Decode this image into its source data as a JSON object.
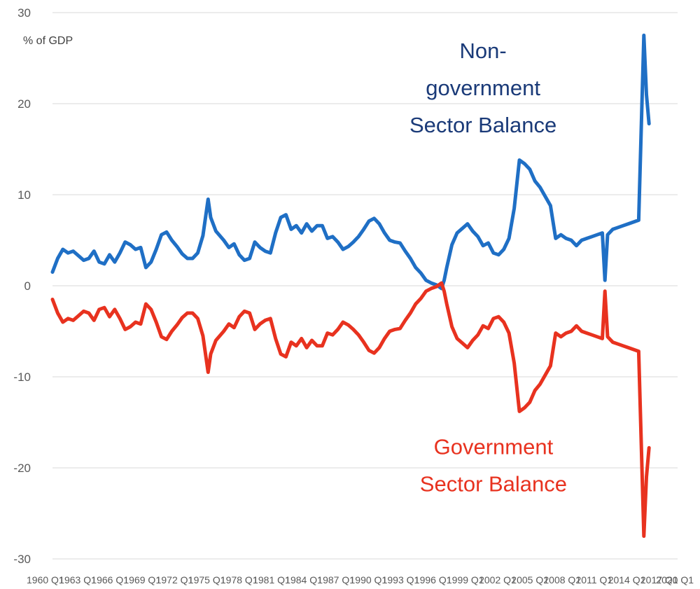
{
  "chart_data": {
    "type": "line",
    "ylabel": "% of GDP",
    "ylim": [
      -30,
      30
    ],
    "yticks": [
      30,
      20,
      10,
      0,
      -10,
      -20,
      -30
    ],
    "xlim": [
      1960.0,
      2020.25
    ],
    "x_tick_labels": [
      "1960 Q1",
      "1963 Q1",
      "1966 Q1",
      "1969 Q1",
      "1972 Q1",
      "1975 Q1",
      "1978 Q1",
      "1981 Q1",
      "1984 Q1",
      "1987 Q1",
      "1990 Q1",
      "1993 Q1",
      "1996 Q1",
      "1999 Q1",
      "2002 Q1",
      "2005 Q1",
      "2008 Q1",
      "2011 Q1",
      "2014 Q1",
      "2017 Q1",
      "2020 Q1"
    ],
    "grid": "horizontal",
    "series": [
      {
        "name": "Non-government Sector Balance",
        "color": "#1f6fc5",
        "points": [
          [
            1960.0,
            1.5
          ],
          [
            1960.5,
            3.0
          ],
          [
            1961.0,
            4.0
          ],
          [
            1961.5,
            3.6
          ],
          [
            1962.0,
            3.8
          ],
          [
            1962.5,
            3.3
          ],
          [
            1963.0,
            2.8
          ],
          [
            1963.5,
            3.0
          ],
          [
            1964.0,
            3.8
          ],
          [
            1964.5,
            2.6
          ],
          [
            1965.0,
            2.4
          ],
          [
            1965.5,
            3.4
          ],
          [
            1966.0,
            2.6
          ],
          [
            1966.5,
            3.6
          ],
          [
            1967.0,
            4.8
          ],
          [
            1967.5,
            4.5
          ],
          [
            1968.0,
            4.0
          ],
          [
            1968.5,
            4.2
          ],
          [
            1969.0,
            2.0
          ],
          [
            1969.5,
            2.6
          ],
          [
            1970.0,
            4.0
          ],
          [
            1970.5,
            5.6
          ],
          [
            1971.0,
            5.9
          ],
          [
            1971.5,
            5.0
          ],
          [
            1972.0,
            4.3
          ],
          [
            1972.5,
            3.5
          ],
          [
            1973.0,
            3.0
          ],
          [
            1973.5,
            3.0
          ],
          [
            1974.0,
            3.6
          ],
          [
            1974.5,
            5.5
          ],
          [
            1975.0,
            9.5
          ],
          [
            1975.25,
            7.5
          ],
          [
            1975.75,
            6.0
          ],
          [
            1976.5,
            5.0
          ],
          [
            1977.0,
            4.2
          ],
          [
            1977.5,
            4.6
          ],
          [
            1978.0,
            3.4
          ],
          [
            1978.5,
            2.8
          ],
          [
            1979.0,
            3.0
          ],
          [
            1979.5,
            4.8
          ],
          [
            1980.0,
            4.2
          ],
          [
            1980.5,
            3.8
          ],
          [
            1981.0,
            3.6
          ],
          [
            1981.5,
            5.8
          ],
          [
            1982.0,
            7.5
          ],
          [
            1982.5,
            7.8
          ],
          [
            1983.0,
            6.2
          ],
          [
            1983.5,
            6.6
          ],
          [
            1984.0,
            5.8
          ],
          [
            1984.5,
            6.8
          ],
          [
            1985.0,
            6.0
          ],
          [
            1985.5,
            6.6
          ],
          [
            1986.0,
            6.6
          ],
          [
            1986.5,
            5.2
          ],
          [
            1987.0,
            5.4
          ],
          [
            1987.5,
            4.8
          ],
          [
            1988.0,
            4.0
          ],
          [
            1988.5,
            4.3
          ],
          [
            1989.0,
            4.8
          ],
          [
            1989.5,
            5.4
          ],
          [
            1990.0,
            6.2
          ],
          [
            1990.5,
            7.1
          ],
          [
            1991.0,
            7.4
          ],
          [
            1991.5,
            6.8
          ],
          [
            1992.0,
            5.8
          ],
          [
            1992.5,
            5.0
          ],
          [
            1993.0,
            4.8
          ],
          [
            1993.5,
            4.7
          ],
          [
            1994.0,
            3.8
          ],
          [
            1994.5,
            3.0
          ],
          [
            1995.0,
            2.0
          ],
          [
            1995.5,
            1.4
          ],
          [
            1996.0,
            0.6
          ],
          [
            1996.5,
            0.3
          ],
          [
            1997.0,
            0.1
          ],
          [
            1997.5,
            -0.3
          ],
          [
            1997.75,
            0.6
          ],
          [
            1998.0,
            2.0
          ],
          [
            1998.5,
            4.5
          ],
          [
            1999.0,
            5.8
          ],
          [
            1999.5,
            6.3
          ],
          [
            2000.0,
            6.8
          ],
          [
            2000.5,
            6.0
          ],
          [
            2001.0,
            5.4
          ],
          [
            2001.5,
            4.4
          ],
          [
            2002.0,
            4.7
          ],
          [
            2002.5,
            3.6
          ],
          [
            2003.0,
            3.4
          ],
          [
            2003.5,
            4.0
          ],
          [
            2004.0,
            5.2
          ],
          [
            2004.5,
            8.5
          ],
          [
            2005.0,
            13.8
          ],
          [
            2005.5,
            13.4
          ],
          [
            2006.0,
            12.8
          ],
          [
            2006.5,
            11.5
          ],
          [
            2007.0,
            10.8
          ],
          [
            2007.5,
            9.8
          ],
          [
            2008.0,
            8.8
          ],
          [
            2008.5,
            5.2
          ],
          [
            2009.0,
            5.6
          ],
          [
            2009.5,
            5.2
          ],
          [
            2010.0,
            5.0
          ],
          [
            2010.5,
            4.4
          ],
          [
            2011.0,
            5.0
          ],
          [
            2011.5,
            5.2
          ],
          [
            2012.0,
            5.4
          ],
          [
            2012.5,
            5.6
          ],
          [
            2013.0,
            5.8
          ],
          [
            2013.25,
            0.6
          ],
          [
            2013.5,
            5.6
          ],
          [
            2014.0,
            6.2
          ],
          [
            2014.5,
            6.4
          ],
          [
            2015.0,
            6.6
          ],
          [
            2015.5,
            6.8
          ],
          [
            2016.0,
            7.0
          ],
          [
            2016.5,
            7.2
          ],
          [
            2017.0,
            27.5
          ],
          [
            2017.25,
            21.0
          ],
          [
            2017.5,
            17.8
          ]
        ]
      },
      {
        "name": "Government Sector Balance",
        "color": "#e8321f",
        "points": [
          [
            1960.0,
            -1.5
          ],
          [
            1960.5,
            -3.0
          ],
          [
            1961.0,
            -4.0
          ],
          [
            1961.5,
            -3.6
          ],
          [
            1962.0,
            -3.8
          ],
          [
            1962.5,
            -3.3
          ],
          [
            1963.0,
            -2.8
          ],
          [
            1963.5,
            -3.0
          ],
          [
            1964.0,
            -3.8
          ],
          [
            1964.5,
            -2.6
          ],
          [
            1965.0,
            -2.4
          ],
          [
            1965.5,
            -3.4
          ],
          [
            1966.0,
            -2.6
          ],
          [
            1966.5,
            -3.6
          ],
          [
            1967.0,
            -4.8
          ],
          [
            1967.5,
            -4.5
          ],
          [
            1968.0,
            -4.0
          ],
          [
            1968.5,
            -4.2
          ],
          [
            1969.0,
            -2.0
          ],
          [
            1969.5,
            -2.6
          ],
          [
            1970.0,
            -4.0
          ],
          [
            1970.5,
            -5.6
          ],
          [
            1971.0,
            -5.9
          ],
          [
            1971.5,
            -5.0
          ],
          [
            1972.0,
            -4.3
          ],
          [
            1972.5,
            -3.5
          ],
          [
            1973.0,
            -3.0
          ],
          [
            1973.5,
            -3.0
          ],
          [
            1974.0,
            -3.6
          ],
          [
            1974.5,
            -5.5
          ],
          [
            1975.0,
            -9.5
          ],
          [
            1975.25,
            -7.5
          ],
          [
            1975.75,
            -6.0
          ],
          [
            1976.5,
            -5.0
          ],
          [
            1977.0,
            -4.2
          ],
          [
            1977.5,
            -4.6
          ],
          [
            1978.0,
            -3.4
          ],
          [
            1978.5,
            -2.8
          ],
          [
            1979.0,
            -3.0
          ],
          [
            1979.5,
            -4.8
          ],
          [
            1980.0,
            -4.2
          ],
          [
            1980.5,
            -3.8
          ],
          [
            1981.0,
            -3.6
          ],
          [
            1981.5,
            -5.8
          ],
          [
            1982.0,
            -7.5
          ],
          [
            1982.5,
            -7.8
          ],
          [
            1983.0,
            -6.2
          ],
          [
            1983.5,
            -6.6
          ],
          [
            1984.0,
            -5.8
          ],
          [
            1984.5,
            -6.8
          ],
          [
            1985.0,
            -6.0
          ],
          [
            1985.5,
            -6.6
          ],
          [
            1986.0,
            -6.6
          ],
          [
            1986.5,
            -5.2
          ],
          [
            1987.0,
            -5.4
          ],
          [
            1987.5,
            -4.8
          ],
          [
            1988.0,
            -4.0
          ],
          [
            1988.5,
            -4.3
          ],
          [
            1989.0,
            -4.8
          ],
          [
            1989.5,
            -5.4
          ],
          [
            1990.0,
            -6.2
          ],
          [
            1990.5,
            -7.1
          ],
          [
            1991.0,
            -7.4
          ],
          [
            1991.5,
            -6.8
          ],
          [
            1992.0,
            -5.8
          ],
          [
            1992.5,
            -5.0
          ],
          [
            1993.0,
            -4.8
          ],
          [
            1993.5,
            -4.7
          ],
          [
            1994.0,
            -3.8
          ],
          [
            1994.5,
            -3.0
          ],
          [
            1995.0,
            -2.0
          ],
          [
            1995.5,
            -1.4
          ],
          [
            1996.0,
            -0.6
          ],
          [
            1996.5,
            -0.3
          ],
          [
            1997.0,
            -0.1
          ],
          [
            1997.5,
            0.3
          ],
          [
            1997.75,
            -0.6
          ],
          [
            1998.0,
            -2.0
          ],
          [
            1998.5,
            -4.5
          ],
          [
            1999.0,
            -5.8
          ],
          [
            1999.5,
            -6.3
          ],
          [
            2000.0,
            -6.8
          ],
          [
            2000.5,
            -6.0
          ],
          [
            2001.0,
            -5.4
          ],
          [
            2001.5,
            -4.4
          ],
          [
            2002.0,
            -4.7
          ],
          [
            2002.5,
            -3.6
          ],
          [
            2003.0,
            -3.4
          ],
          [
            2003.5,
            -4.0
          ],
          [
            2004.0,
            -5.2
          ],
          [
            2004.5,
            -8.5
          ],
          [
            2005.0,
            -13.8
          ],
          [
            2005.5,
            -13.4
          ],
          [
            2006.0,
            -12.8
          ],
          [
            2006.5,
            -11.5
          ],
          [
            2007.0,
            -10.8
          ],
          [
            2007.5,
            -9.8
          ],
          [
            2008.0,
            -8.8
          ],
          [
            2008.5,
            -5.2
          ],
          [
            2009.0,
            -5.6
          ],
          [
            2009.5,
            -5.2
          ],
          [
            2010.0,
            -5.0
          ],
          [
            2010.5,
            -4.4
          ],
          [
            2011.0,
            -5.0
          ],
          [
            2011.5,
            -5.2
          ],
          [
            2012.0,
            -5.4
          ],
          [
            2012.5,
            -5.6
          ],
          [
            2013.0,
            -5.8
          ],
          [
            2013.25,
            -0.6
          ],
          [
            2013.5,
            -5.6
          ],
          [
            2014.0,
            -6.2
          ],
          [
            2014.5,
            -6.4
          ],
          [
            2015.0,
            -6.6
          ],
          [
            2015.5,
            -6.8
          ],
          [
            2016.0,
            -7.0
          ],
          [
            2016.5,
            -7.2
          ],
          [
            2017.0,
            -27.5
          ],
          [
            2017.25,
            -21.0
          ],
          [
            2017.5,
            -17.8
          ]
        ]
      }
    ],
    "annotations": [
      {
        "lines": [
          "Non-",
          "government",
          "Sector Balance"
        ],
        "color": "#1a3a78",
        "anchor_data": [
          2001.5,
          25.0
        ]
      },
      {
        "lines": [
          "Government",
          "Sector Balance"
        ],
        "color": "#e8321f",
        "anchor_data": [
          2002.5,
          -18.5
        ]
      }
    ]
  }
}
